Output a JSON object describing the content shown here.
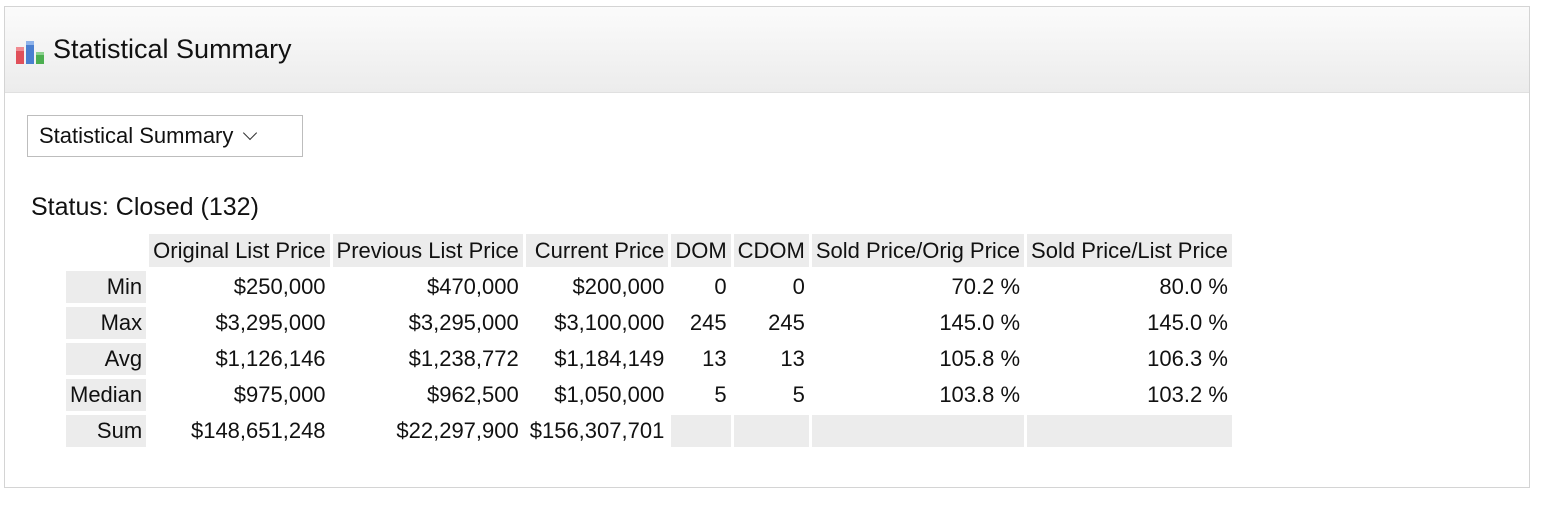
{
  "panel": {
    "title": "Statistical Summary",
    "icon": "bar-chart-icon",
    "icon_colors": [
      "#e0505a",
      "#4a7fd0",
      "#4caf50"
    ]
  },
  "dropdown": {
    "selected": "Statistical Summary"
  },
  "status": {
    "label": "Status: Closed (132)"
  },
  "table": {
    "columns": [
      "Original List Price",
      "Previous List Price",
      "Current Price",
      "DOM",
      "CDOM",
      "Sold Price/Orig Price",
      "Sold Price/List Price"
    ],
    "rows": [
      {
        "label": "Min",
        "values": [
          "$250,000",
          "$470,000",
          "$200,000",
          "0",
          "0",
          "70.2 %",
          "80.0 %"
        ]
      },
      {
        "label": "Max",
        "values": [
          "$3,295,000",
          "$3,295,000",
          "$3,100,000",
          "245",
          "245",
          "145.0 %",
          "145.0 %"
        ]
      },
      {
        "label": "Avg",
        "values": [
          "$1,126,146",
          "$1,238,772",
          "$1,184,149",
          "13",
          "13",
          "105.8 %",
          "106.3 %"
        ]
      },
      {
        "label": "Median",
        "values": [
          "$975,000",
          "$962,500",
          "$1,050,000",
          "5",
          "5",
          "103.8 %",
          "103.2 %"
        ]
      },
      {
        "label": "Sum",
        "values": [
          "$148,651,248",
          "$22,297,900",
          "$156,307,701",
          "",
          "",
          "",
          ""
        ]
      }
    ]
  }
}
